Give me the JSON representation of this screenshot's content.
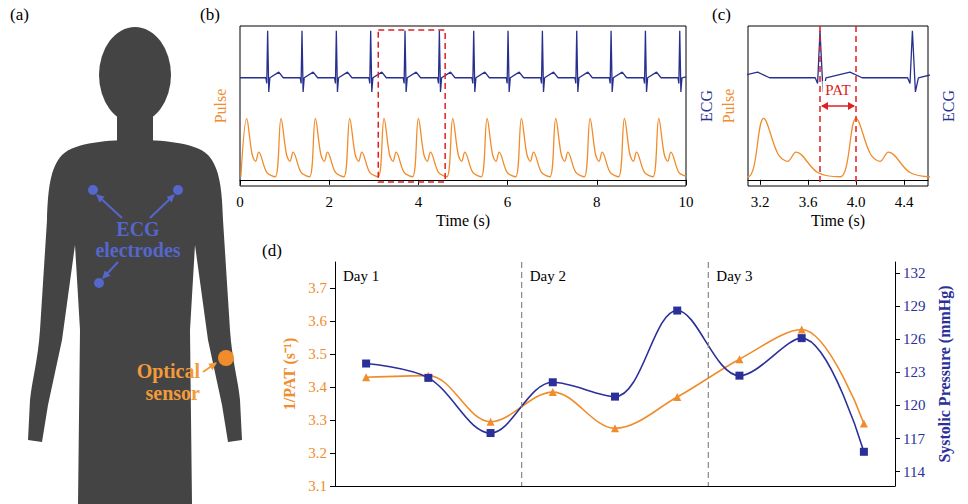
{
  "diagram": {
    "panel": "(a)",
    "electrodes_label": "ECG electrodes",
    "sensor_label": "Optical sensor"
  },
  "chart_data": [
    {
      "panel": "(b)",
      "type": "line",
      "x_label": "Time (s)",
      "xlim": [
        0,
        10
      ],
      "xticks": [
        0,
        2,
        4,
        6,
        8,
        10
      ],
      "ylim": [
        -0.1,
        2.5
      ],
      "y2lim": [
        -2.3,
        1.1
      ],
      "tick_labels": "x",
      "grid": false,
      "annotations": [
        {
          "shape": "box",
          "x_start": 3.1,
          "x_end": 4.6
        }
      ],
      "series": [
        {
          "name": "Pulse",
          "color": "#f08c2c",
          "line_style": "smooth",
          "x": [
            0.02,
            0.15,
            0.27,
            0.35,
            0.42,
            0.6,
            0.79,
            0.92,
            1.04,
            1.12,
            1.19,
            1.37,
            1.56,
            1.69,
            1.81,
            1.89,
            1.96,
            2.14,
            2.33,
            2.46,
            2.58,
            2.66,
            2.73,
            2.91,
            3.1,
            3.23,
            3.35,
            3.43,
            3.5,
            3.68,
            3.87,
            4,
            4.12,
            4.2,
            4.27,
            4.45,
            4.64,
            4.77,
            4.89,
            4.97,
            5.04,
            5.22,
            5.41,
            5.54,
            5.66,
            5.74,
            5.81,
            5.99,
            6.18,
            6.31,
            6.43,
            6.51,
            6.58,
            6.76,
            6.95,
            7.08,
            7.2,
            7.28,
            7.35,
            7.53,
            7.72,
            7.85,
            7.97,
            8.05,
            8.12,
            8.3,
            8.49,
            8.62,
            8.74,
            8.82,
            8.89,
            9.07,
            9.26,
            9.39,
            9.51,
            9.59,
            9.66,
            9.84,
            10
          ],
          "values": [
            0.05,
            1,
            0.42,
            0.3,
            0.45,
            0.12,
            0.05,
            1,
            0.42,
            0.3,
            0.45,
            0.12,
            0.05,
            1,
            0.42,
            0.3,
            0.45,
            0.12,
            0.05,
            1,
            0.42,
            0.3,
            0.45,
            0.12,
            0.05,
            1,
            0.42,
            0.3,
            0.45,
            0.12,
            0.05,
            1,
            0.42,
            0.3,
            0.45,
            0.12,
            0.05,
            1,
            0.42,
            0.3,
            0.45,
            0.12,
            0.05,
            1,
            0.42,
            0.3,
            0.45,
            0.12,
            0.05,
            1,
            0.42,
            0.3,
            0.45,
            0.12,
            0.05,
            1,
            0.42,
            0.3,
            0.45,
            0.12,
            0.05,
            1,
            0.42,
            0.3,
            0.45,
            0.12,
            0.05,
            1,
            0.42,
            0.3,
            0.45,
            0.12,
            0.05,
            1,
            0.42,
            0.3,
            0.45,
            0.12,
            0.06
          ]
        },
        {
          "name": "ECG",
          "color": "#272f8f",
          "line_style": "solid",
          "axis": "y2",
          "x": [
            0,
            0.58,
            0.6,
            0.62,
            0.645,
            0.67,
            0.87,
            0.97,
            1.35,
            1.37,
            1.39,
            1.415,
            1.44,
            1.64,
            1.74,
            2.12,
            2.14,
            2.16,
            2.185,
            2.21,
            2.41,
            2.51,
            2.89,
            2.91,
            2.93,
            2.955,
            2.98,
            3.18,
            3.28,
            3.66,
            3.68,
            3.7,
            3.725,
            3.75,
            3.95,
            4.05,
            4.43,
            4.45,
            4.47,
            4.495,
            4.52,
            4.72,
            4.82,
            5.2,
            5.22,
            5.24,
            5.265,
            5.29,
            5.49,
            5.59,
            5.97,
            5.99,
            6.01,
            6.035,
            6.06,
            6.26,
            6.36,
            6.74,
            6.76,
            6.78,
            6.805,
            6.83,
            7.03,
            7.13,
            7.51,
            7.53,
            7.55,
            7.575,
            7.6,
            7.8,
            7.9,
            8.28,
            8.3,
            8.32,
            8.345,
            8.37,
            8.57,
            8.67,
            9.05,
            9.07,
            9.09,
            9.115,
            9.14,
            9.34,
            9.44,
            9.82,
            9.84,
            9.86,
            9.885,
            9.91,
            10
          ],
          "values": [
            0,
            0,
            -0.12,
            1,
            -0.3,
            0,
            0.12,
            0,
            0,
            -0.12,
            1,
            -0.3,
            0,
            0.12,
            0,
            0,
            -0.12,
            1,
            -0.3,
            0,
            0.12,
            0,
            0,
            -0.12,
            1,
            -0.3,
            0,
            0.12,
            0,
            0,
            -0.12,
            1,
            -0.3,
            0,
            0.12,
            0,
            0,
            -0.12,
            1,
            -0.3,
            0,
            0.12,
            0,
            0,
            -0.12,
            1,
            -0.3,
            0,
            0.12,
            0,
            0,
            -0.12,
            1,
            -0.3,
            0,
            0.12,
            0,
            0,
            -0.12,
            1,
            -0.3,
            0,
            0.12,
            0,
            0,
            -0.12,
            1,
            -0.3,
            0,
            0.12,
            0,
            0,
            -0.12,
            1,
            -0.3,
            0,
            0.12,
            0,
            0,
            -0.12,
            1,
            -0.3,
            0,
            0.12,
            0,
            0,
            -0.12,
            1,
            -0.3,
            0,
            0.02
          ]
        }
      ]
    },
    {
      "panel": "(c)",
      "type": "line",
      "x_label": "Time (s)",
      "xlim": [
        3.1,
        4.6
      ],
      "xticks": [
        3.2,
        3.6,
        {
          "value": 4,
          "label": "4.0"
        },
        4.4
      ],
      "ylim": [
        -0.1,
        2.5
      ],
      "y2lim": [
        -2.3,
        1.1
      ],
      "tick_labels": "x",
      "grid": false,
      "annotations": [
        {
          "shape": "interval",
          "text": "PAT",
          "x_start": 3.7,
          "x_end": 4.0
        }
      ],
      "series": [
        {
          "name": "Pulse",
          "color": "#f08c2c",
          "line_style": "smooth",
          "x": [
            2.91,
            3.1,
            3.23,
            3.35,
            3.43,
            3.5,
            3.68,
            3.87,
            4,
            4.12,
            4.2,
            4.27,
            4.45,
            4.64,
            4.77
          ],
          "values": [
            0.12,
            0.05,
            1,
            0.42,
            0.3,
            0.45,
            0.12,
            0.05,
            1,
            0.42,
            0.3,
            0.45,
            0.12,
            0.05,
            1
          ]
        },
        {
          "name": "ECG",
          "color": "#272f8f",
          "line_style": "solid",
          "axis": "y2",
          "x": [
            2.89,
            2.91,
            2.93,
            2.955,
            2.98,
            3.18,
            3.28,
            3.66,
            3.68,
            3.7,
            3.725,
            3.75,
            3.95,
            4.05,
            4.43,
            4.45,
            4.47,
            4.495,
            4.52,
            4.72,
            4.82
          ],
          "values": [
            0,
            -0.12,
            1,
            -0.3,
            0,
            0.12,
            0,
            0,
            -0.12,
            1,
            -0.3,
            0,
            0.12,
            0,
            0,
            -0.12,
            1,
            -0.3,
            0,
            0.12,
            0
          ]
        }
      ]
    },
    {
      "panel": "(d)",
      "type": "line",
      "categories": [
        null,
        null,
        null,
        null,
        null,
        null,
        null,
        null,
        null
      ],
      "groups": [
        {
          "label": "Day 1",
          "size": 3
        },
        {
          "label": "Day 2",
          "size": 3
        },
        {
          "label": "Day 3",
          "size": 3
        }
      ],
      "ylim": [
        3.1,
        3.78
      ],
      "yticks": [
        3.1,
        3.2,
        3.3,
        3.4,
        3.5,
        3.6,
        3.7
      ],
      "y2lim": [
        112.7,
        133
      ],
      "y2ticks": [
        114,
        117,
        120,
        123,
        126,
        129,
        132
      ],
      "tick_labels": "y",
      "grid": false,
      "series": [
        {
          "name": "1/PAT (s⁻¹)",
          "color": "#f08c2c",
          "marker": "triangle",
          "line_style": "smooth",
          "values": [
            3.43,
            3.435,
            3.295,
            3.385,
            3.275,
            3.37,
            3.485,
            3.575,
            3.29
          ]
        },
        {
          "name": "Systolic Pressure (mmHg)",
          "color": "#2b2f9a",
          "marker": "square",
          "line_style": "smooth",
          "axis": "y2",
          "values": [
            123.8,
            122.5,
            117.5,
            122.1,
            120.8,
            128.6,
            122.7,
            126.1,
            115.8
          ]
        }
      ]
    }
  ]
}
